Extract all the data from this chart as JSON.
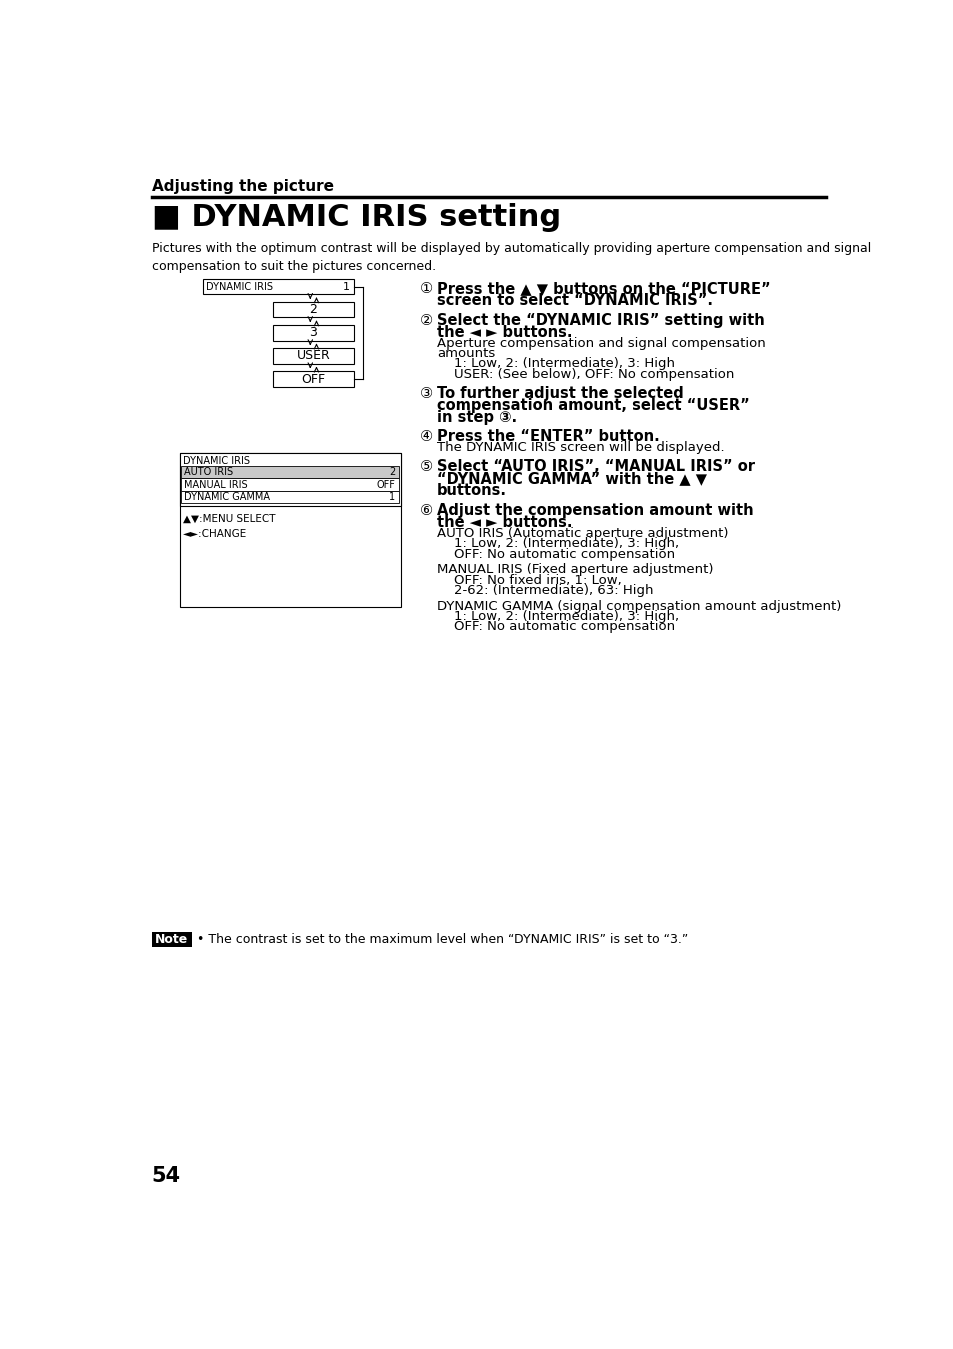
{
  "bg_color": "#ffffff",
  "page_number": "54",
  "section_title": "Adjusting the picture",
  "main_title": "■ DYNAMIC IRIS setting",
  "intro_text": "Pictures with the optimum contrast will be displayed by automatically providing aperture compensation and signal\ncompensation to suit the pictures concerned.",
  "diagram1": {
    "title": "DYNAMIC IRIS",
    "boxes": [
      "1",
      "2",
      "3",
      "USER",
      "OFF"
    ]
  },
  "diagram2": {
    "title": "DYNAMIC IRIS",
    "rows": [
      {
        "label": "AUTO IRIS",
        "value": "2",
        "highlight": true
      },
      {
        "label": "MANUAL IRIS",
        "value": "OFF",
        "highlight": false
      },
      {
        "label": "DYNAMIC GAMMA",
        "value": "1",
        "highlight": false
      }
    ],
    "footer": "▲▼:MENU SELECT\n◄►:CHANGE"
  },
  "steps": [
    {
      "num": 1,
      "bold_text": "Press the ▲ ▼ buttons on the “PICTURE”\nscreen to select “DYNAMIC IRIS”.",
      "normal_text": ""
    },
    {
      "num": 2,
      "bold_text": "Select the “DYNAMIC IRIS” setting with\nthe ◄ ► buttons.",
      "normal_text": "Aperture compensation and signal compensation\namounts\n    1: Low, 2: (Intermediate), 3: High\n    USER: (See below), OFF: No compensation"
    },
    {
      "num": 3,
      "bold_text": "To further adjust the selected\ncompensation amount, select “USER”\nin step ③.",
      "normal_text": ""
    },
    {
      "num": 4,
      "bold_text": "Press the “ENTER” button.",
      "normal_text": "The DYNAMIC IRIS screen will be displayed."
    },
    {
      "num": 5,
      "bold_text": "Select “AUTO IRIS”, “MANUAL IRIS” or\n“DYNAMIC GAMMA” with the ▲ ▼\nbuttons.",
      "normal_text": ""
    },
    {
      "num": 6,
      "bold_text": "Adjust the compensation amount with\nthe ◄ ► buttons.",
      "normal_text": "AUTO IRIS (Automatic aperture adjustment)\n    1: Low, 2: (Intermediate), 3: High,\n    OFF: No automatic compensation\n\nMANUAL IRIS (Fixed aperture adjustment)\n    OFF: No fixed iris, 1: Low,\n    2-62: (Intermediate), 63: High\n\nDYNAMIC GAMMA (signal compensation amount adjustment)\n    1: Low, 2: (Intermediate), 3: High,\n    OFF: No automatic compensation"
    }
  ],
  "note_text": "• The contrast is set to the maximum level when “DYNAMIC IRIS” is set to “3.”"
}
